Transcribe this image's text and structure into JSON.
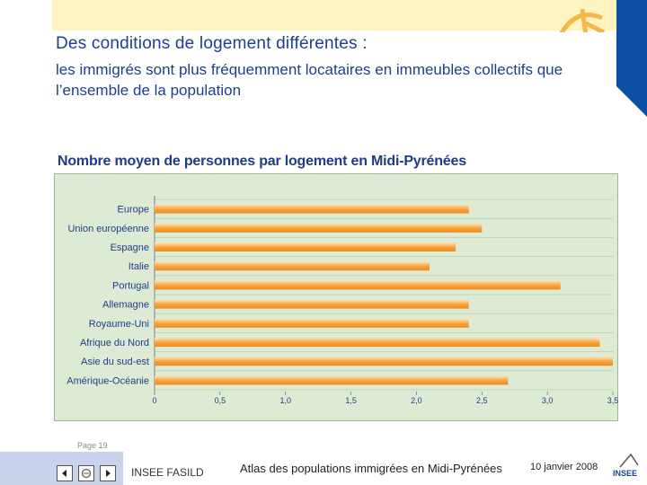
{
  "slide": {
    "title": "Des conditions de logement différentes :",
    "subtitle": "les immigrés sont plus fréquemment locataires en immeubles collectifs que l’ensemble de la population",
    "page_label": "Page 19"
  },
  "footer": {
    "org": "INSEE FASILD",
    "atlas": "Atlas des populations immigrées en Midi-Pyrénées",
    "date": "10 janvier 2008",
    "logo_text": "INSEE"
  },
  "icons": {
    "prev": "arrow-left-icon",
    "home": "home-icon",
    "next": "arrow-right-icon"
  },
  "colors": {
    "title": "#1d3f8f",
    "bar_start": "#f7a23b",
    "bar_end": "#fde3b8",
    "chart_bg": "#ddebd4",
    "band_blue": "#0b4ea2"
  },
  "chart_data": {
    "type": "bar",
    "orientation": "horizontal",
    "title": "Nombre moyen de personnes par logement en Midi-Pyrénées",
    "categories": [
      "Europe",
      "Union européenne",
      "Espagne",
      "Italie",
      "Portugal",
      "Allemagne",
      "Royaume-Uni",
      "Afrique du Nord",
      "Asie du sud-est",
      "Amérique-Océanie"
    ],
    "values": [
      2.4,
      2.5,
      2.3,
      2.1,
      3.1,
      2.4,
      2.4,
      3.4,
      3.5,
      2.7
    ],
    "xlim": [
      0,
      3.5
    ],
    "xticks": [
      "0",
      "0,5",
      "1,0",
      "1,5",
      "2,0",
      "2,5",
      "3,0",
      "3,5"
    ],
    "xtick_values": [
      0,
      0.5,
      1.0,
      1.5,
      2.0,
      2.5,
      3.0,
      3.5
    ],
    "grid": true,
    "xlabel": "",
    "ylabel": ""
  }
}
